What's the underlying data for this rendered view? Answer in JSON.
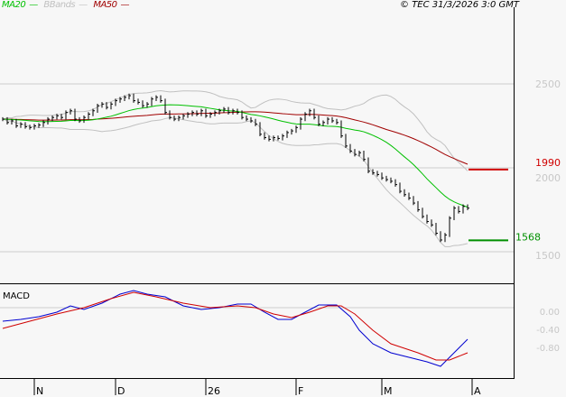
{
  "legend": {
    "ma20": {
      "label": "MA20",
      "color": "#00c000"
    },
    "bbands": {
      "label": "BBands",
      "color": "#c0c0c0"
    },
    "ma50": {
      "label": "MA50",
      "color": "#a00000"
    }
  },
  "copyright": "© TEC 31/3/2026 3:0 GMT",
  "chart_data": [
    {
      "type": "bar",
      "title": "",
      "y_ticks": [
        "2500",
        "2000",
        "1500"
      ],
      "y_tick_values": [
        2500,
        2000,
        1500
      ],
      "x_ticks": [
        {
          "label": "N",
          "bar": 7
        },
        {
          "label": "D",
          "bar": 25
        },
        {
          "label": "26",
          "bar": 45
        },
        {
          "label": "F",
          "bar": 65
        },
        {
          "label": "M",
          "bar": 84
        },
        {
          "label": "A",
          "bar": 104
        }
      ],
      "grid": true,
      "closes": [
        2290,
        2270,
        2280,
        2250,
        2260,
        2245,
        2240,
        2250,
        2255,
        2270,
        2290,
        2300,
        2310,
        2300,
        2330,
        2340,
        2290,
        2280,
        2300,
        2320,
        2340,
        2370,
        2380,
        2360,
        2380,
        2400,
        2410,
        2420,
        2430,
        2400,
        2390,
        2370,
        2380,
        2410,
        2420,
        2400,
        2330,
        2300,
        2290,
        2300,
        2310,
        2320,
        2330,
        2320,
        2340,
        2310,
        2320,
        2330,
        2340,
        2350,
        2330,
        2340,
        2330,
        2300,
        2290,
        2280,
        2260,
        2200,
        2180,
        2170,
        2180,
        2175,
        2190,
        2210,
        2220,
        2240,
        2290,
        2320,
        2340,
        2300,
        2260,
        2270,
        2290,
        2280,
        2270,
        2190,
        2130,
        2100,
        2080,
        2090,
        2050,
        1980,
        1970,
        1960,
        1940,
        1930,
        1920,
        1900,
        1860,
        1840,
        1820,
        1790,
        1750,
        1710,
        1680,
        1660,
        1610,
        1570,
        1600,
        1700,
        1760,
        1740,
        1770,
        1760
      ],
      "levels": [
        {
          "value": 1990,
          "label": "1990",
          "color": "#d00000"
        },
        {
          "value": 1568,
          "label": "1568",
          "color": "#009000"
        }
      ]
    },
    {
      "type": "line",
      "title": "MACD",
      "y_ticks": [
        "0.00",
        "-0.40",
        "-0.80"
      ],
      "y_tick_values": [
        0,
        -0.4,
        -0.8
      ],
      "series": [
        {
          "color": "#0000d0",
          "points": [
            [
              0,
              -0.3
            ],
            [
              4,
              -0.26
            ],
            [
              8,
              -0.2
            ],
            [
              12,
              -0.1
            ],
            [
              15,
              0.04
            ],
            [
              18,
              -0.04
            ],
            [
              22,
              0.1
            ],
            [
              26,
              0.3
            ],
            [
              29,
              0.38
            ],
            [
              32,
              0.3
            ],
            [
              36,
              0.24
            ],
            [
              40,
              0.04
            ],
            [
              44,
              -0.04
            ],
            [
              48,
              0
            ],
            [
              52,
              0.08
            ],
            [
              55,
              0.08
            ],
            [
              58,
              -0.1
            ],
            [
              61,
              -0.26
            ],
            [
              64,
              -0.26
            ],
            [
              67,
              -0.1
            ],
            [
              70,
              0.06
            ],
            [
              74,
              0.06
            ],
            [
              77,
              -0.2
            ],
            [
              79,
              -0.5
            ],
            [
              82,
              -0.8
            ],
            [
              86,
              -1.0
            ],
            [
              90,
              -1.1
            ],
            [
              94,
              -1.2
            ],
            [
              97,
              -1.3
            ],
            [
              100,
              -1.0
            ],
            [
              103,
              -0.7
            ]
          ]
        },
        {
          "color": "#d00000",
          "points": [
            [
              0,
              -0.46
            ],
            [
              6,
              -0.3
            ],
            [
              12,
              -0.14
            ],
            [
              18,
              0
            ],
            [
              24,
              0.2
            ],
            [
              29,
              0.34
            ],
            [
              34,
              0.24
            ],
            [
              40,
              0.1
            ],
            [
              46,
              0
            ],
            [
              52,
              0.04
            ],
            [
              56,
              0
            ],
            [
              60,
              -0.14
            ],
            [
              64,
              -0.22
            ],
            [
              68,
              -0.1
            ],
            [
              72,
              0.04
            ],
            [
              75,
              0.04
            ],
            [
              78,
              -0.14
            ],
            [
              82,
              -0.5
            ],
            [
              86,
              -0.8
            ],
            [
              92,
              -1.0
            ],
            [
              96,
              -1.16
            ],
            [
              99,
              -1.16
            ],
            [
              103,
              -1.0
            ]
          ]
        }
      ]
    }
  ]
}
